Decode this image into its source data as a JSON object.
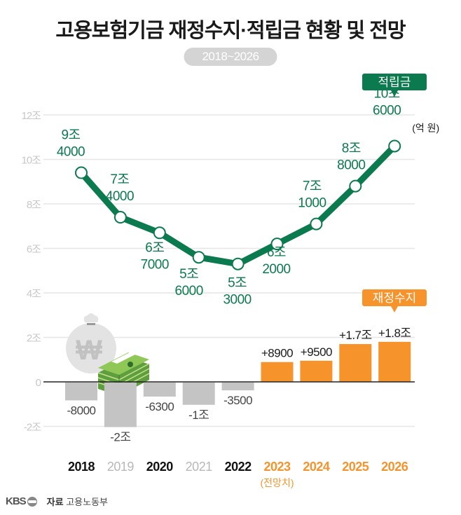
{
  "header": {
    "title": "고용보험기금 재정수지·적립금 현황 및 전망",
    "period": "2018~2026"
  },
  "footer": {
    "logo": "KBS",
    "source_label": "자료",
    "source": "고용노동부"
  },
  "colors": {
    "reserve_line": "#0b7a4f",
    "balance_projected": "#f7932b",
    "balance_past": "#c4c4c4",
    "grid": "#e6e6e6",
    "axis_label": "#c8c8c8"
  },
  "chart_data": {
    "type": "bar+line",
    "title": "고용보험기금 재정수지·적립금 현황 및 전망",
    "subtitle": "2018~2026",
    "unit_note": "(억 원)",
    "projection_note": "(전망치)",
    "projection_start": "2023",
    "categories": [
      "2018",
      "2019",
      "2020",
      "2021",
      "2022",
      "2023",
      "2024",
      "2025",
      "2026"
    ],
    "category_emphasis": [
      "dark",
      "light",
      "dark",
      "light",
      "dark",
      "projected",
      "projected",
      "projected",
      "projected"
    ],
    "y_ticks": [
      {
        "value": 12,
        "label": "12조"
      },
      {
        "value": 10,
        "label": "10조"
      },
      {
        "value": 8,
        "label": "8조"
      },
      {
        "value": 6,
        "label": "6조"
      },
      {
        "value": 4,
        "label": "4조"
      },
      {
        "value": 2,
        "label": "2조"
      },
      {
        "value": 0,
        "label": "0"
      },
      {
        "value": -2,
        "label": "-2조"
      }
    ],
    "ylim": [
      -2,
      12
    ],
    "yunit": "조 원",
    "grid": true,
    "series": [
      {
        "name": "적립금",
        "type": "line",
        "color": "#0b7a4f",
        "values": [
          9.4,
          7.4,
          6.7,
          5.6,
          5.3,
          6.2,
          7.1,
          8.8,
          10.6
        ],
        "labels": [
          [
            "9조",
            "4000"
          ],
          [
            "7조",
            "4000"
          ],
          [
            "6조",
            "7000"
          ],
          [
            "5조",
            "6000"
          ],
          [
            "5조",
            "3000"
          ],
          [
            "6조",
            "2000"
          ],
          [
            "7조",
            "1000"
          ],
          [
            "8조",
            "8000"
          ],
          [
            "10조",
            "6000"
          ]
        ]
      },
      {
        "name": "재정수지",
        "type": "bar",
        "color": "#f7932b",
        "values": [
          -0.8,
          -2.0,
          -0.63,
          -1.0,
          -0.35,
          0.89,
          0.95,
          1.7,
          1.8
        ],
        "labels": [
          "-8000",
          "-2조",
          "-6300",
          "-1조",
          "-3500",
          "+8900",
          "+9500",
          "+1.7조",
          "+1.8조"
        ]
      }
    ]
  }
}
